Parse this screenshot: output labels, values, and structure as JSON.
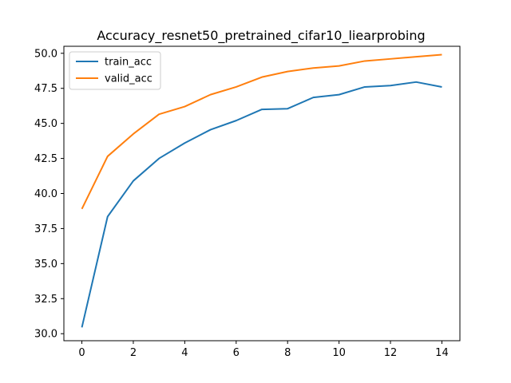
{
  "chart_data": {
    "type": "line",
    "title": "Accuracy_resnet50_pretrained_cifar10_liearprobing",
    "xlabel": "",
    "ylabel": "",
    "x": [
      0,
      1,
      2,
      3,
      4,
      5,
      6,
      7,
      8,
      9,
      10,
      11,
      12,
      13,
      14
    ],
    "xlim": [
      -0.7,
      14.7
    ],
    "ylim": [
      29.5,
      50.5
    ],
    "xticks": [
      0,
      2,
      4,
      6,
      8,
      10,
      12,
      14
    ],
    "yticks": [
      30.0,
      32.5,
      35.0,
      37.5,
      40.0,
      42.5,
      45.0,
      47.5,
      50.0
    ],
    "xtick_labels": [
      "0",
      "2",
      "4",
      "6",
      "8",
      "10",
      "12",
      "14"
    ],
    "ytick_labels": [
      "30.0",
      "32.5",
      "35.0",
      "37.5",
      "40.0",
      "42.5",
      "45.0",
      "47.5",
      "50.0"
    ],
    "grid": false,
    "legend_position": "top-left",
    "series": [
      {
        "name": "train_acc",
        "color": "#1f77b4",
        "values": [
          30.45,
          38.35,
          40.9,
          42.5,
          43.6,
          44.55,
          45.2,
          46.0,
          46.05,
          46.85,
          47.05,
          47.6,
          47.7,
          47.95,
          47.6
        ]
      },
      {
        "name": "valid_acc",
        "color": "#ff7f0e",
        "values": [
          38.9,
          42.65,
          44.25,
          45.65,
          46.2,
          47.05,
          47.6,
          48.3,
          48.7,
          48.95,
          49.1,
          49.45,
          49.6,
          49.75,
          49.9
        ]
      }
    ]
  }
}
